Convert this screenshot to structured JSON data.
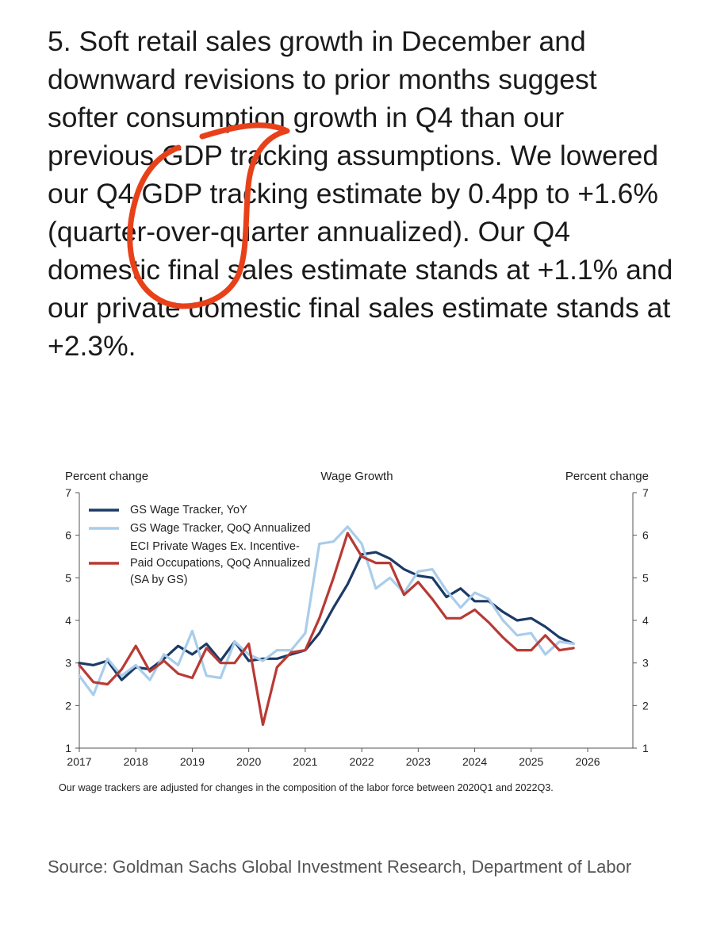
{
  "paragraph": "5. Soft retail sales growth in December and downward revisions to prior months suggest softer consumption growth in Q4 than our previous GDP tracking assumptions. We lowered our Q4 GDP tracking estimate by 0.4pp to +1.6% (quarter-over-quarter annualized). Our Q4 domestic final sales estimate stands at +1.1% and our private domestic final sales estimate stands at +2.3%.",
  "annotation_color": "#e8411a",
  "chart_data": {
    "type": "line",
    "title": "Wage Growth",
    "ylabel_left": "Percent change",
    "ylabel_right": "Percent change",
    "ylim": [
      1,
      7
    ],
    "yticks": [
      "1",
      "2",
      "3",
      "4",
      "5",
      "6",
      "7"
    ],
    "xlim": [
      2017,
      2026.8
    ],
    "xticks": [
      "2017",
      "2018",
      "2019",
      "2020",
      "2021",
      "2022",
      "2023",
      "2024",
      "2025",
      "2026"
    ],
    "footnote": "Our wage trackers are adjusted for changes in the composition of the labor force between 2020Q1 and 2022Q3.",
    "legend_position": "top-left",
    "series": [
      {
        "name": "GS Wage Tracker, YoY",
        "legend": [
          "GS Wage Tracker, YoY"
        ],
        "color": "#1b3a66",
        "x": [
          2017,
          2017.25,
          2017.5,
          2017.75,
          2018,
          2018.25,
          2018.5,
          2018.75,
          2019,
          2019.25,
          2019.5,
          2019.75,
          2020,
          2020.25,
          2020.5,
          2020.75,
          2021,
          2021.25,
          2021.5,
          2021.75,
          2022,
          2022.25,
          2022.5,
          2022.75,
          2023,
          2023.25,
          2023.5,
          2023.75,
          2024,
          2024.25,
          2024.5,
          2024.75,
          2025,
          2025.25,
          2025.5,
          2025.75
        ],
        "values": [
          3.0,
          2.95,
          3.05,
          2.6,
          2.9,
          2.85,
          3.1,
          3.4,
          3.2,
          3.45,
          3.05,
          3.5,
          3.05,
          3.1,
          3.1,
          3.2,
          3.3,
          3.7,
          4.3,
          4.85,
          5.55,
          5.6,
          5.45,
          5.2,
          5.05,
          5.0,
          4.55,
          4.75,
          4.45,
          4.45,
          4.2,
          4.0,
          4.05,
          3.85,
          3.6,
          3.45
        ]
      },
      {
        "name": "GS Wage Tracker, QoQ Annualized",
        "legend": [
          "GS Wage Tracker, QoQ Annualized"
        ],
        "color": "#a9cdea",
        "x": [
          2017,
          2017.25,
          2017.5,
          2017.75,
          2018,
          2018.25,
          2018.5,
          2018.75,
          2019,
          2019.25,
          2019.5,
          2019.75,
          2020,
          2020.25,
          2020.5,
          2020.75,
          2021,
          2021.25,
          2021.5,
          2021.75,
          2022,
          2022.25,
          2022.5,
          2022.75,
          2023,
          2023.25,
          2023.5,
          2023.75,
          2024,
          2024.25,
          2024.5,
          2024.75,
          2025,
          2025.25,
          2025.5,
          2025.75
        ],
        "values": [
          2.7,
          2.25,
          3.1,
          2.7,
          2.95,
          2.6,
          3.2,
          2.95,
          3.75,
          2.7,
          2.65,
          3.5,
          3.2,
          3.05,
          3.3,
          3.3,
          3.7,
          5.8,
          5.85,
          6.2,
          5.8,
          4.75,
          5.0,
          4.65,
          5.15,
          5.2,
          4.7,
          4.3,
          4.65,
          4.5,
          4.0,
          3.65,
          3.7,
          3.2,
          3.5,
          3.45
        ]
      },
      {
        "name": "ECI Private Wages Ex. Incentive-Paid Occupations, QoQ Annualized (SA by GS)",
        "legend": [
          "ECI Private Wages Ex. Incentive-",
          "Paid Occupations, QoQ Annualized",
          "(SA by GS)"
        ],
        "color": "#b83a34",
        "x": [
          2017,
          2017.25,
          2017.5,
          2017.75,
          2018,
          2018.25,
          2018.5,
          2018.75,
          2019,
          2019.25,
          2019.5,
          2019.75,
          2020,
          2020.25,
          2020.5,
          2020.75,
          2021,
          2021.25,
          2021.5,
          2021.75,
          2022,
          2022.25,
          2022.5,
          2022.75,
          2023,
          2023.25,
          2023.5,
          2023.75,
          2024,
          2024.25,
          2024.5,
          2024.75,
          2025,
          2025.25,
          2025.5,
          2025.75
        ],
        "values": [
          2.95,
          2.55,
          2.5,
          2.85,
          3.4,
          2.8,
          3.05,
          2.75,
          2.65,
          3.35,
          3.0,
          3.0,
          3.45,
          1.55,
          2.9,
          3.25,
          3.3,
          4.05,
          5.0,
          6.05,
          5.5,
          5.35,
          5.35,
          4.6,
          4.9,
          4.5,
          4.05,
          4.05,
          4.25,
          3.95,
          3.6,
          3.3,
          3.3,
          3.65,
          3.3,
          3.35
        ]
      }
    ]
  },
  "source": "Source: Goldman Sachs Global Investment Research, Department of Labor"
}
